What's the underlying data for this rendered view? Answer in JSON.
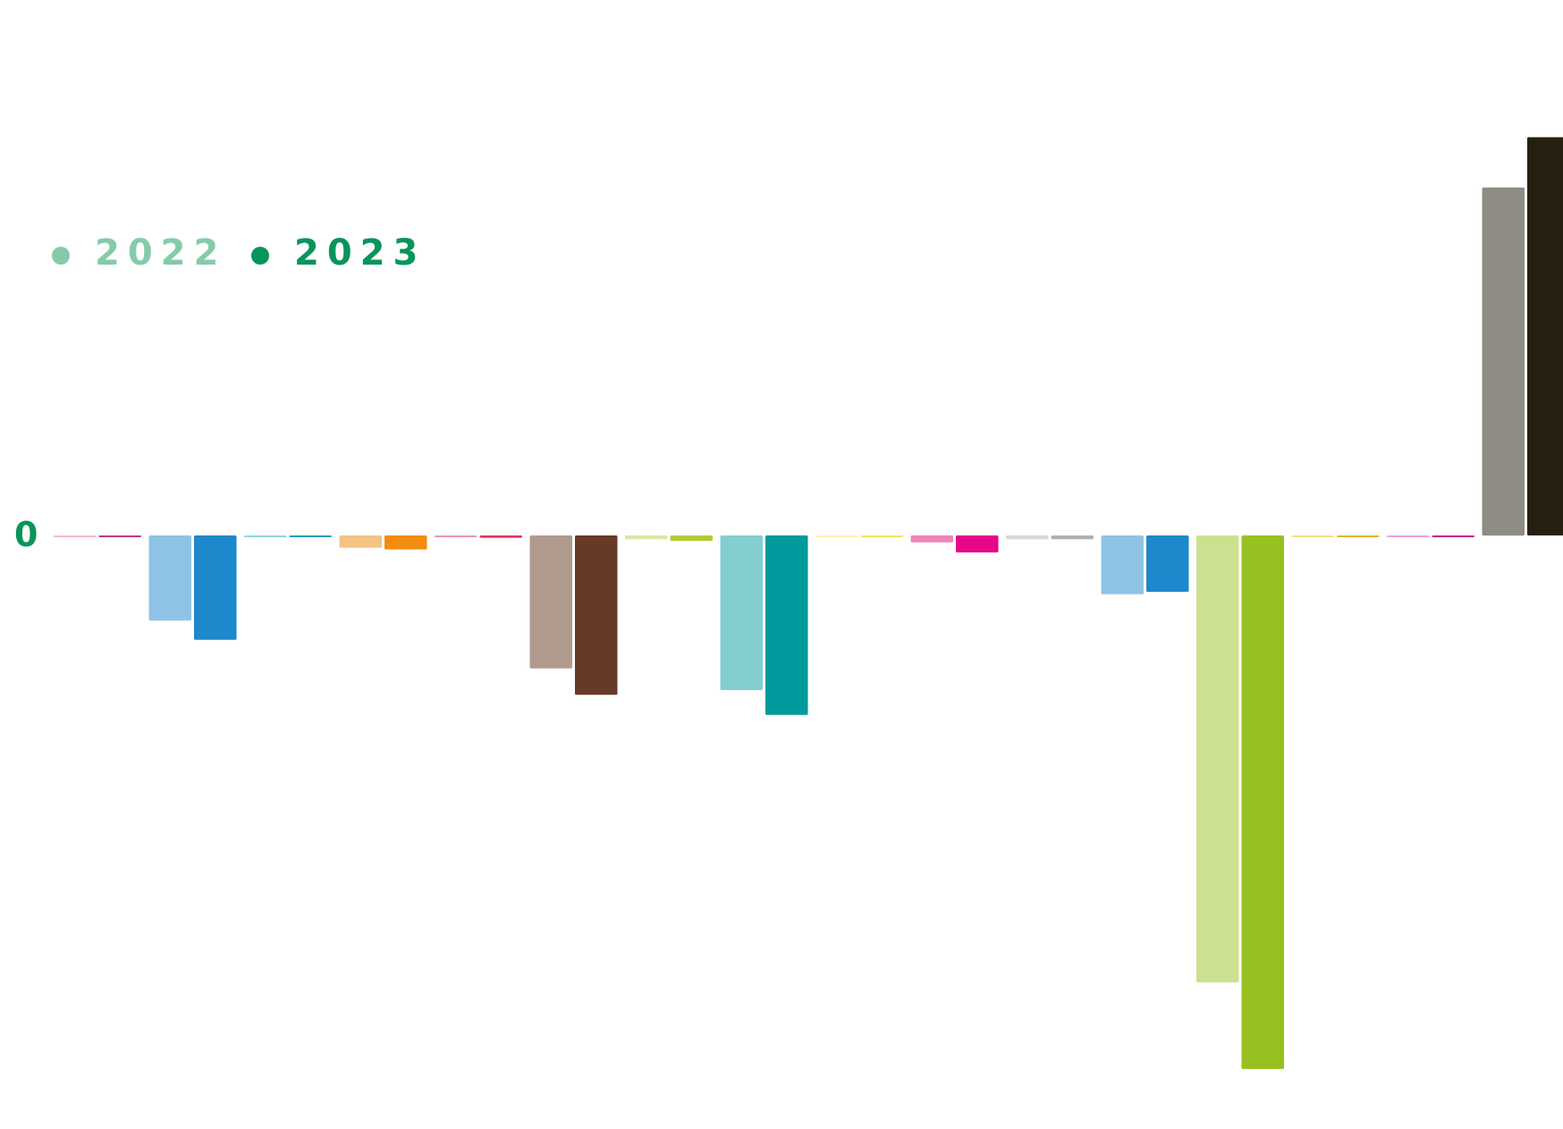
{
  "chart_data": {
    "type": "bar",
    "title": "",
    "xlabel": "",
    "ylabel": "",
    "baseline_label": "0",
    "grid": false,
    "legend_position": "top-left",
    "legend": [
      {
        "label": "2022",
        "color": "#85cbaa"
      },
      {
        "label": "2023",
        "color": "#07955a"
      }
    ],
    "ylim": [
      -690,
      510
    ],
    "groups": [
      {
        "v2022": -1,
        "v2023": -2,
        "c2022": "#f4b6d6",
        "c2023": "#c1368f"
      },
      {
        "v2022": -110,
        "v2023": -135,
        "c2022": "#8fc3e5",
        "c2023": "#1d88cb"
      },
      {
        "v2022": -2,
        "v2023": -2,
        "c2022": "#8fd5e4",
        "c2023": "#14a0bd"
      },
      {
        "v2022": -16,
        "v2023": -18,
        "c2022": "#f5c383",
        "c2023": "#f28c11"
      },
      {
        "v2022": -2,
        "v2023": -3,
        "c2022": "#ef98ae",
        "c2023": "#e0335f"
      },
      {
        "v2022": -172,
        "v2023": -206,
        "c2022": "#b09a8e",
        "c2023": "#673a26"
      },
      {
        "v2022": -5,
        "v2023": -7,
        "c2022": "#d9e8a4",
        "c2023": "#b4ca35"
      },
      {
        "v2022": -200,
        "v2023": -232,
        "c2022": "#83cfd0",
        "c2023": "#009a9c"
      },
      {
        "v2022": -1,
        "v2023": -1,
        "c2022": "#fcf3b4",
        "c2023": "#f6e45c"
      },
      {
        "v2022": -9,
        "v2023": -22,
        "c2022": "#ed85bb",
        "c2023": "#e6078a"
      },
      {
        "v2022": -5,
        "v2023": -5,
        "c2022": "#d8d8d8",
        "c2023": "#b0b0b0"
      },
      {
        "v2022": -76,
        "v2023": -73,
        "c2022": "#8fc3e5",
        "c2023": "#1d88cb"
      },
      {
        "v2022": -578,
        "v2023": -690,
        "c2022": "#cce18f",
        "c2023": "#97c121"
      },
      {
        "v2022": -1,
        "v2023": -2,
        "c2022": "#f7dc8e",
        "c2023": "#e8b419"
      },
      {
        "v2022": -1,
        "v2023": -2,
        "c2022": "#f09fd0",
        "c2023": "#c81a8d"
      },
      {
        "v2022": 450,
        "v2023": 515,
        "c2022": "#8e8c83",
        "c2023": "#262010"
      }
    ]
  }
}
